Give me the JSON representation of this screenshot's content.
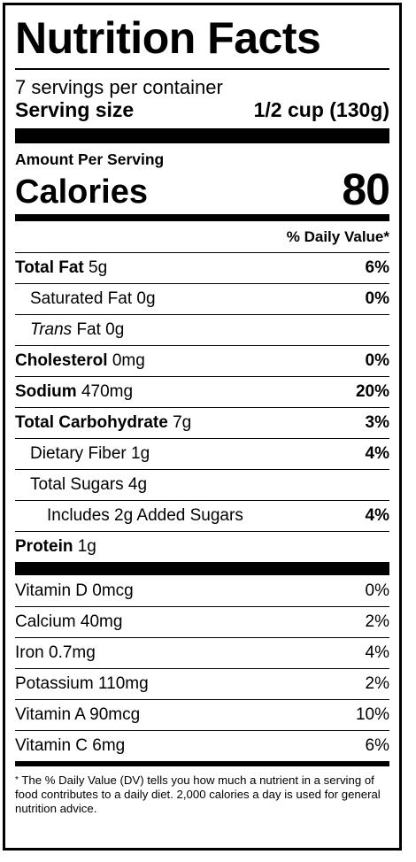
{
  "header": {
    "title": "Nutrition Facts"
  },
  "servings": {
    "per_container": "7 servings per container",
    "size_label": "Serving size",
    "size_value": "1/2 cup (130g)"
  },
  "calories": {
    "amount_per_serving": "Amount Per Serving",
    "label": "Calories",
    "value": "80"
  },
  "daily_value_header": "% Daily Value*",
  "nutrients": {
    "total_fat": {
      "name": "Total Fat",
      "amount": "5g",
      "dv": "6%"
    },
    "saturated_fat": {
      "name": "Saturated Fat 0g",
      "dv": "0%"
    },
    "trans_fat": {
      "name_italic": "Trans",
      "name_rest": " Fat 0g"
    },
    "cholesterol": {
      "name": "Cholesterol",
      "amount": "0mg",
      "dv": "0%"
    },
    "sodium": {
      "name": "Sodium",
      "amount": "470mg",
      "dv": "20%"
    },
    "total_carbohydrate": {
      "name": "Total Carbohydrate",
      "amount": "7g",
      "dv": "3%"
    },
    "dietary_fiber": {
      "name": "Dietary Fiber 1g",
      "dv": "4%"
    },
    "total_sugars": {
      "name": "Total Sugars 4g"
    },
    "added_sugars": {
      "name": "Includes 2g Added Sugars",
      "dv": "4%"
    },
    "protein": {
      "name": "Protein",
      "amount": "1g"
    }
  },
  "vitamins": {
    "vitamin_d": {
      "name": "Vitamin D 0mcg",
      "dv": "0%"
    },
    "calcium": {
      "name": "Calcium 40mg",
      "dv": "2%"
    },
    "iron": {
      "name": "Iron 0.7mg",
      "dv": "4%"
    },
    "potassium": {
      "name": "Potassium 110mg",
      "dv": "2%"
    },
    "vitamin_a": {
      "name": "Vitamin A 90mcg",
      "dv": "10%"
    },
    "vitamin_c": {
      "name": "Vitamin C 6mg",
      "dv": "6%"
    }
  },
  "footnote": {
    "star": "*",
    "text": " The % Daily Value (DV) tells you how much a nutrient in a serving of food contributes to a daily diet. 2,000 calories a day is used for general nutrition advice."
  }
}
